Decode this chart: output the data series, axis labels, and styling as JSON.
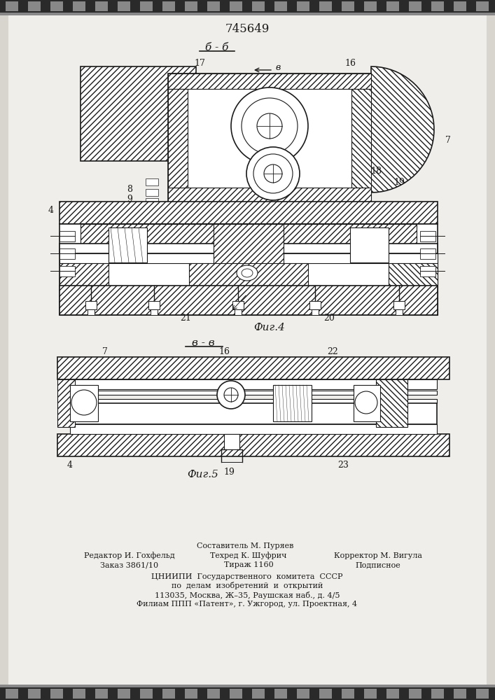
{
  "patent_number": "745649",
  "section_label_1": "б - б",
  "section_label_2": "в - в",
  "fig_label_1": "Фиг.4",
  "fig_label_2": "Фиг.5",
  "arrow_label": "в",
  "bg_color": "#f0eeea",
  "paper_color": "#f5f3ef",
  "drawing_color": "#1a1a1a",
  "hatch_color": "#222222",
  "footer_line0_center": "Составитель М. Пуряев",
  "footer_line1_left": "Редактор И. Гохфельд",
  "footer_line1_center": "Техред К. Шуфрич",
  "footer_line1_right": "Корректор М. Вигула",
  "footer_line2_left": "Заказ 3861/10",
  "footer_line2_center": "Тираж 1160",
  "footer_line2_right": "Подписное",
  "footer_org1": "ЦНИИПИ  Государственного  комитета  СССР",
  "footer_org2": "по  делам  изобретений  и  открытий",
  "footer_org3": "113035, Москва, Ж–35, Раушская наб., д. 4/5",
  "footer_org4": "Филиам ППП «Патент», г. Ужгород, ул. Проектная, 4"
}
